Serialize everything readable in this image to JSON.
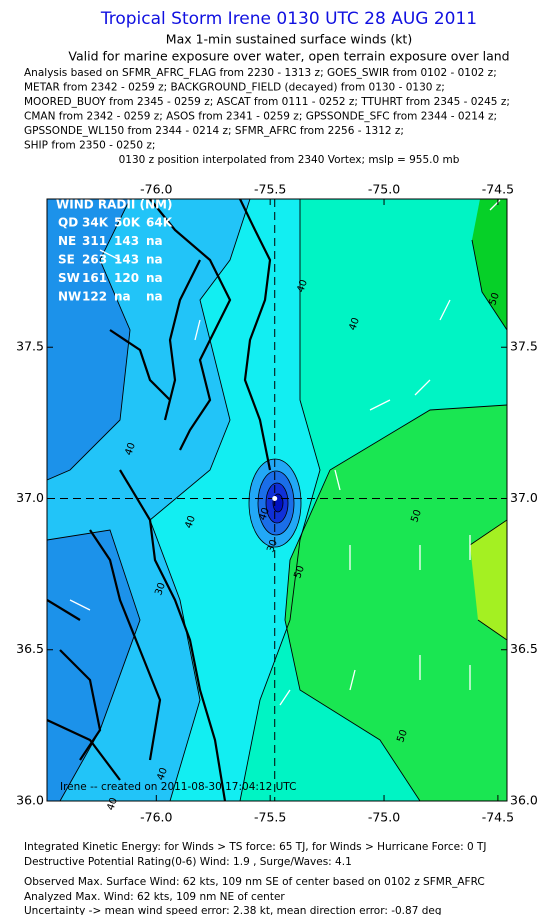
{
  "header": {
    "title": "Tropical Storm Irene 0130 UTC 28 AUG 2011",
    "subtitle": "Max 1-min sustained surface winds (kt)",
    "validity": "Valid for marine exposure over water, open terrain exposure over land",
    "analysis_lines": [
      "Analysis based on SFMR_AFRC_FLAG from 2230 - 1313 z; GOES_SWIR from 0102 - 0102 z;",
      "METAR from 2342 - 0259 z; BACKGROUND_FIELD (decayed) from 0130 - 0130 z;",
      "MOORED_BUOY from 2345 - 0259 z; ASCAT from 0111 - 0252 z; TTUHRT from 2345 - 0245 z;",
      "CMAN from 2342 - 0259 z; ASOS from 2341 - 0259 z; GPSSONDE_SFC from 2344 - 0214 z;",
      "GPSSONDE_WL150 from 2344 - 0214 z; SFMR_AFRC from 2256 - 1312 z;",
      "SHIP from 2350 - 0250 z;"
    ],
    "position_note": "0130 z position interpolated from 2340 Vortex; mslp = 955.0 mb"
  },
  "map": {
    "xlim": [
      -76.48,
      -74.46
    ],
    "ylim": [
      36.0,
      37.99
    ],
    "xticks": [
      {
        "value": -76.0,
        "label": "-76.0"
      },
      {
        "value": -75.5,
        "label": "-75.5"
      },
      {
        "value": -75.0,
        "label": "-75.0"
      },
      {
        "value": -74.5,
        "label": "-74.5"
      }
    ],
    "yticks": [
      {
        "value": 36.0,
        "label": "36.0"
      },
      {
        "value": 36.5,
        "label": "36.5"
      },
      {
        "value": 37.0,
        "label": "37.0"
      },
      {
        "value": 37.5,
        "label": "37.5"
      }
    ],
    "center": {
      "lon": -75.48,
      "lat": 37.0
    },
    "wind_radii": {
      "title": "WIND RADII (NM)",
      "rows": [
        [
          "QD",
          "34K",
          "50K",
          "64K"
        ],
        [
          "NE",
          "311",
          "143",
          "na"
        ],
        [
          "SE",
          "263",
          "143",
          "na"
        ],
        [
          "SW",
          "161",
          "120",
          "na"
        ],
        [
          "NW",
          "122",
          "na",
          "na"
        ]
      ]
    },
    "contour_labels": [
      40,
      40,
      40,
      40,
      40,
      40,
      30,
      30,
      50,
      50,
      50,
      50,
      40
    ],
    "watermark": "Irene -- created on 2011-08-30 17:04:12 UTC"
  },
  "footer": [
    "Integrated Kinetic Energy:  for Winds > TS force: 65 TJ,  for Winds > Hurricane Force: 0 TJ",
    "Destructive Potential Rating(0-6)   Wind: 1.9 , Surge/Waves: 4.1",
    "Observed Max. Surface Wind: 62 kts, 109 nm SE of center based on 0102 z SFMR_AFRC",
    "Analyzed Max. Wind: 62 kts, 109 nm NE of center",
    "Uncertainty -> mean wind speed error: 2.38 kt,  mean direction error: -0.87 deg"
  ]
}
